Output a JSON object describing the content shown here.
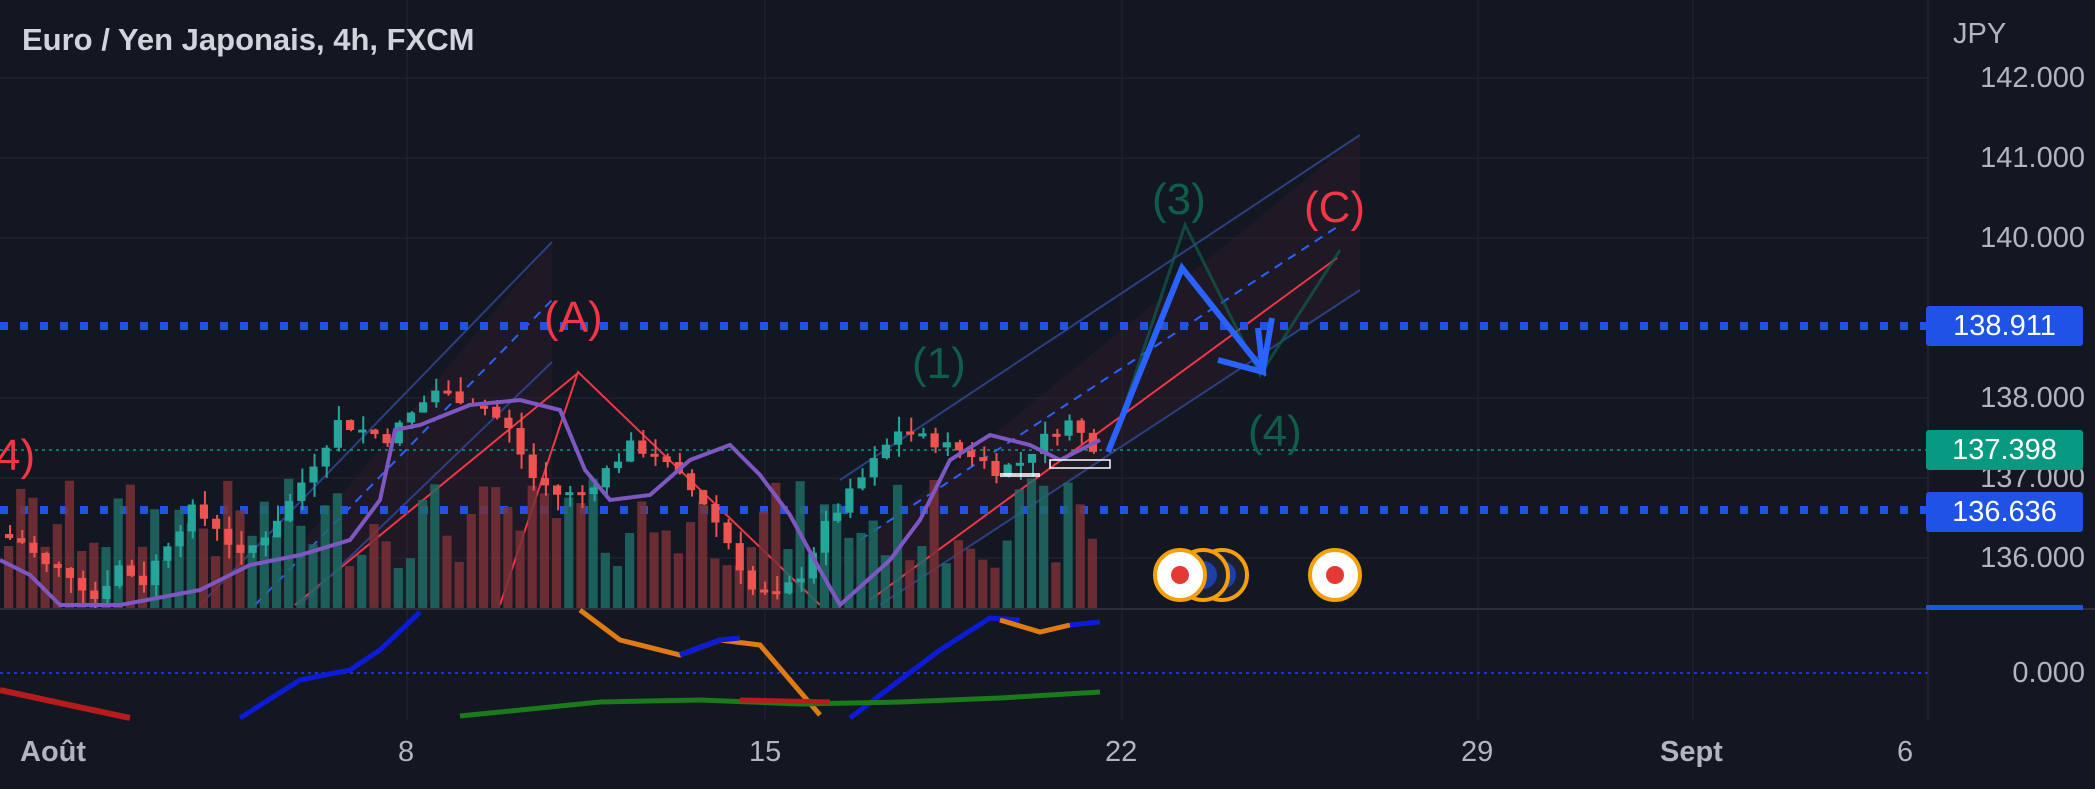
{
  "header": {
    "title": "Euro / Yen Japonais, 4h, FXCM",
    "unit": "JPY"
  },
  "price_axis": {
    "ticks": [
      "142.000",
      "141.000",
      "140.000",
      "138.000",
      "137.000",
      "136.000"
    ],
    "oscillator_zero": "0.000",
    "levels": [
      {
        "value": "138.911",
        "color": "#1e53e5"
      },
      {
        "value": "137.398",
        "color": "#089981"
      },
      {
        "value": "136.636",
        "color": "#1e53e5"
      }
    ]
  },
  "time_axis": {
    "labels": [
      "Août",
      "8",
      "15",
      "22",
      "29",
      "Sept",
      "6"
    ]
  },
  "wave_labels": [
    "(A)",
    "(C)",
    "(1)",
    "(3)",
    "(4)",
    "4)"
  ],
  "colors": {
    "background": "#131722",
    "up": "#26a69a",
    "down": "#ef5350",
    "level_line": "#1e53e5",
    "projection": "#2962ff"
  },
  "chart_data": {
    "type": "candlestick",
    "symbol": "Euro / Yen Japonais",
    "timeframe": "4h",
    "source": "FXCM",
    "y_unit": "JPY",
    "ylim": [
      135.4,
      142.2
    ],
    "x_axis": [
      "Août",
      "8",
      "15",
      "22",
      "29",
      "Sept",
      "6"
    ],
    "last_price": 137.398,
    "horizontal_levels": [
      138.911,
      136.636
    ],
    "price_path": [
      136.3,
      136.2,
      135.9,
      135.8,
      135.5,
      135.9,
      135.7,
      136.2,
      136.6,
      136.4,
      136.0,
      136.3,
      136.7,
      137.2,
      137.7,
      137.6,
      137.5,
      137.8,
      138.1,
      138.0,
      137.9,
      137.6,
      137.0,
      136.8,
      136.8,
      137.1,
      137.4,
      137.3,
      137.0,
      136.7,
      136.2,
      135.6,
      135.5,
      135.8,
      136.4,
      136.8,
      137.2,
      137.6,
      137.5,
      137.4,
      137.3,
      137.1,
      137.2,
      137.5,
      137.7,
      137.4
    ],
    "projection": {
      "points": [
        137.4,
        139.7,
        138.4,
        139.0
      ],
      "labels": [
        "(3)",
        "(4)",
        "(C)"
      ]
    },
    "oscillator": {
      "zero_line": 0.0
    }
  }
}
